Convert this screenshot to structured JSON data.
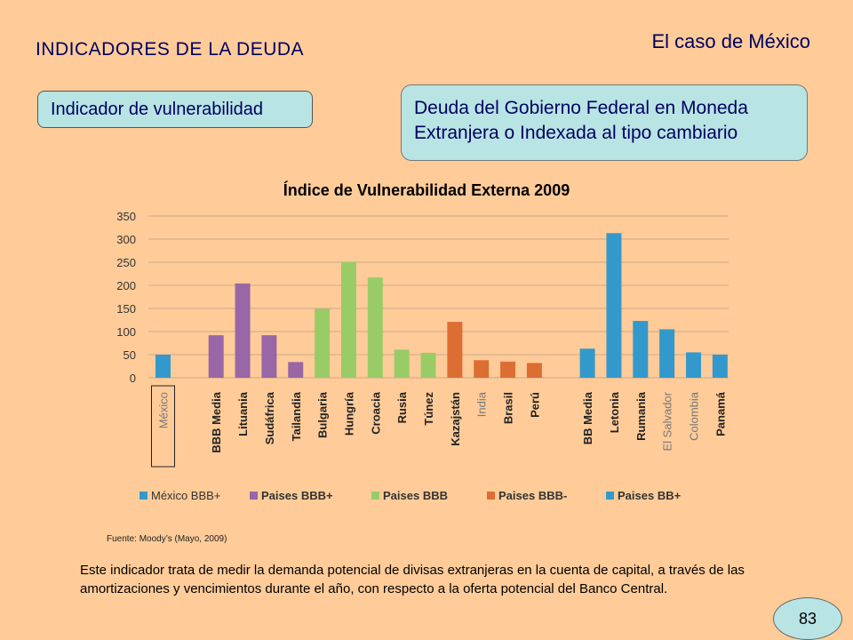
{
  "header": {
    "title": "INDICADORES DE LA DEUDA",
    "subtitle": "El caso de México"
  },
  "indicator_box": {
    "label": "Indicador de vulnerabilidad"
  },
  "debt_box": {
    "line1": "Deuda del Gobierno Federal en Moneda",
    "line2": "Extranjera o Indexada al tipo cambiario"
  },
  "chart_data": {
    "type": "bar",
    "title": "Índice de Vulnerabilidad Externa 2009",
    "ylim": [
      0,
      350
    ],
    "yticks": [
      0,
      50,
      100,
      150,
      200,
      250,
      300,
      350
    ],
    "grid": true,
    "legend_position": "bottom",
    "categories": [
      "México",
      "BBB Media",
      "Lituania",
      "Sudáfrica",
      "Tailandia",
      "Bulgaria",
      "Hungría",
      "Croacia",
      "Rusia",
      "Túnez",
      "Kazajstán",
      "India",
      "Brasil",
      "Perú",
      "BB Media",
      "Letonia",
      "Rumania",
      "El Salvador",
      "Colombia",
      "Panamá"
    ],
    "values": [
      50,
      92,
      204,
      92,
      34,
      149,
      250,
      217,
      61,
      54,
      121,
      38,
      35,
      32,
      63,
      313,
      123,
      105,
      55,
      50
    ],
    "groups": [
      "México BBB+",
      "Paises BBB+",
      "Paises BBB+",
      "Paises BBB+",
      "Paises BBB+",
      "Paises BBB",
      "Paises BBB",
      "Paises BBB",
      "Paises BBB",
      "Paises BBB",
      "Paises BBB-",
      "Paises BBB-",
      "Paises BBB-",
      "Paises BBB-",
      "Paises BB+",
      "Paises BB+",
      "Paises BB+",
      "Paises BB+",
      "Paises BB+",
      "Paises BB+"
    ],
    "legend": [
      {
        "name": "México BBB+",
        "color": "#3399CC"
      },
      {
        "name": "Paises BBB+",
        "color": "#9966A6"
      },
      {
        "name": "Paises BBB",
        "color": "#99CC66"
      },
      {
        "name": "Paises BBB-",
        "color": "#DD6E33"
      },
      {
        "name": "Paises BB+",
        "color": "#3399CC"
      }
    ]
  },
  "source": "Fuente: Moody’s (Mayo, 2009)",
  "body_text": "Este indicador trata de medir la demanda potencial de divisas extranjeras en la cuenta de capital, a través de las amortizaciones y vencimientos durante el año, con respecto a la oferta potencial del Banco Central.",
  "page_number": "83"
}
